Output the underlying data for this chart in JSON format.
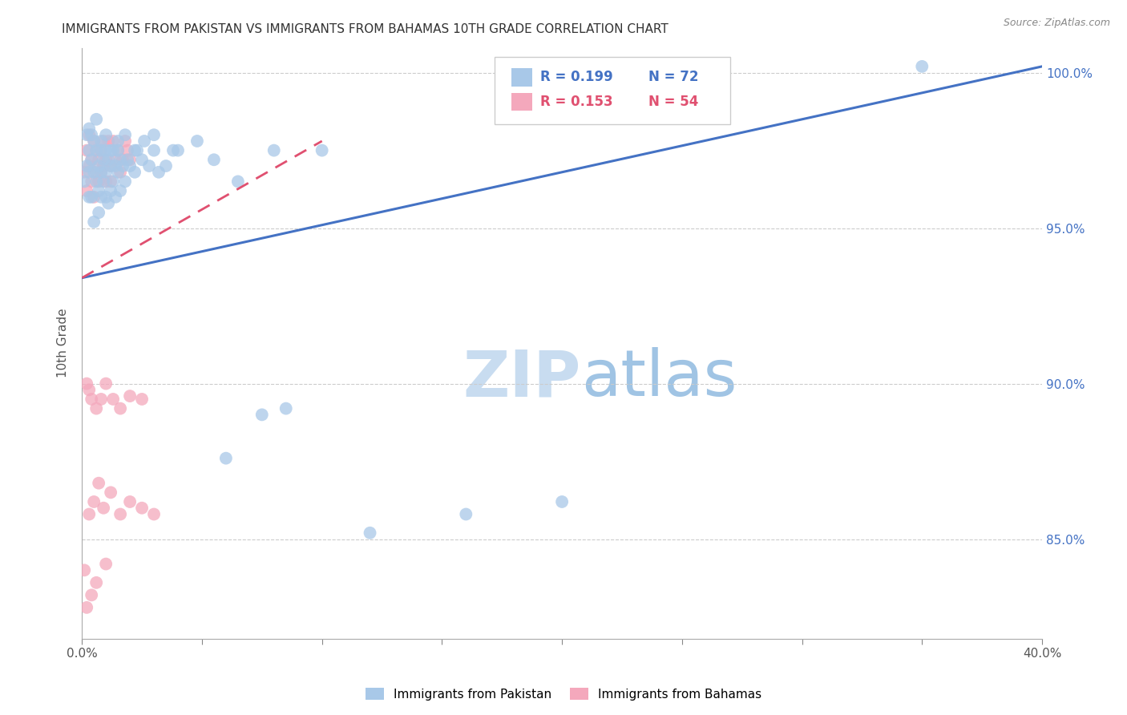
{
  "title": "IMMIGRANTS FROM PAKISTAN VS IMMIGRANTS FROM BAHAMAS 10TH GRADE CORRELATION CHART",
  "source": "Source: ZipAtlas.com",
  "ylabel": "10th Grade",
  "xlim": [
    0.0,
    0.4
  ],
  "ylim": [
    0.818,
    1.008
  ],
  "xtick_positions": [
    0.0,
    0.05,
    0.1,
    0.15,
    0.2,
    0.25,
    0.3,
    0.35,
    0.4
  ],
  "xticklabels": [
    "0.0%",
    "",
    "",
    "",
    "",
    "",
    "",
    "",
    "40.0%"
  ],
  "ytick_positions": [
    0.85,
    0.9,
    0.95,
    1.0
  ],
  "ytick_labels": [
    "85.0%",
    "90.0%",
    "95.0%",
    "100.0%"
  ],
  "legend_blue_r": "R = 0.199",
  "legend_blue_n": "N = 72",
  "legend_pink_r": "R = 0.153",
  "legend_pink_n": "N = 54",
  "blue_color": "#A8C8E8",
  "pink_color": "#F4A8BC",
  "blue_line_color": "#4472C4",
  "pink_line_color": "#E05070",
  "watermark": "ZIPAtlas",
  "watermark_color": "#D8EAF5",
  "blue_line_x0": 0.0,
  "blue_line_y0": 0.934,
  "blue_line_x1": 0.4,
  "blue_line_y1": 1.002,
  "pink_line_x0": 0.0,
  "pink_line_y0": 0.934,
  "pink_line_x1": 0.1,
  "pink_line_y1": 0.978,
  "pakistan_x": [
    0.001,
    0.002,
    0.002,
    0.003,
    0.003,
    0.003,
    0.004,
    0.004,
    0.005,
    0.005,
    0.005,
    0.006,
    0.006,
    0.007,
    0.007,
    0.007,
    0.008,
    0.008,
    0.008,
    0.009,
    0.009,
    0.01,
    0.01,
    0.01,
    0.011,
    0.011,
    0.012,
    0.012,
    0.013,
    0.013,
    0.014,
    0.014,
    0.015,
    0.015,
    0.016,
    0.016,
    0.017,
    0.018,
    0.019,
    0.02,
    0.022,
    0.023,
    0.025,
    0.028,
    0.03,
    0.032,
    0.035,
    0.04,
    0.055,
    0.065,
    0.075,
    0.085,
    0.1,
    0.35,
    0.003,
    0.004,
    0.006,
    0.008,
    0.01,
    0.012,
    0.015,
    0.018,
    0.022,
    0.026,
    0.03,
    0.038,
    0.048,
    0.06,
    0.08,
    0.12,
    0.16,
    0.2
  ],
  "pakistan_y": [
    0.965,
    0.97,
    0.98,
    0.968,
    0.96,
    0.975,
    0.972,
    0.96,
    0.968,
    0.978,
    0.952,
    0.975,
    0.965,
    0.97,
    0.962,
    0.955,
    0.975,
    0.968,
    0.96,
    0.972,
    0.965,
    0.975,
    0.968,
    0.96,
    0.972,
    0.958,
    0.97,
    0.962,
    0.975,
    0.965,
    0.97,
    0.96,
    0.968,
    0.975,
    0.972,
    0.962,
    0.97,
    0.965,
    0.972,
    0.97,
    0.968,
    0.975,
    0.972,
    0.97,
    0.975,
    0.968,
    0.97,
    0.975,
    0.972,
    0.965,
    0.89,
    0.892,
    0.975,
    1.002,
    0.982,
    0.98,
    0.985,
    0.978,
    0.98,
    0.975,
    0.978,
    0.98,
    0.975,
    0.978,
    0.98,
    0.975,
    0.978,
    0.876,
    0.975,
    0.852,
    0.858,
    0.862
  ],
  "bahamas_x": [
    0.001,
    0.002,
    0.002,
    0.003,
    0.003,
    0.004,
    0.004,
    0.005,
    0.005,
    0.006,
    0.006,
    0.007,
    0.007,
    0.008,
    0.008,
    0.009,
    0.009,
    0.01,
    0.01,
    0.011,
    0.012,
    0.012,
    0.013,
    0.014,
    0.015,
    0.016,
    0.017,
    0.018,
    0.019,
    0.02,
    0.002,
    0.003,
    0.004,
    0.006,
    0.008,
    0.01,
    0.013,
    0.016,
    0.02,
    0.025,
    0.001,
    0.003,
    0.005,
    0.007,
    0.009,
    0.012,
    0.016,
    0.02,
    0.025,
    0.03,
    0.002,
    0.004,
    0.006,
    0.01
  ],
  "bahamas_y": [
    0.968,
    0.975,
    0.962,
    0.97,
    0.98,
    0.972,
    0.965,
    0.978,
    0.96,
    0.975,
    0.968,
    0.972,
    0.965,
    0.975,
    0.968,
    0.978,
    0.97,
    0.972,
    0.965,
    0.978,
    0.97,
    0.965,
    0.978,
    0.972,
    0.975,
    0.968,
    0.972,
    0.978,
    0.975,
    0.972,
    0.9,
    0.898,
    0.895,
    0.892,
    0.895,
    0.9,
    0.895,
    0.892,
    0.896,
    0.895,
    0.84,
    0.858,
    0.862,
    0.868,
    0.86,
    0.865,
    0.858,
    0.862,
    0.86,
    0.858,
    0.828,
    0.832,
    0.836,
    0.842
  ]
}
